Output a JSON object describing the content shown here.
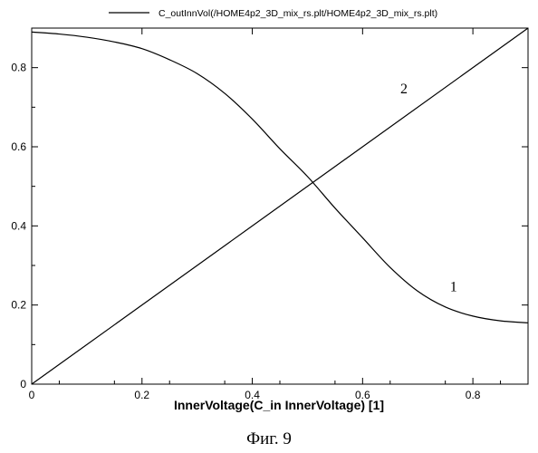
{
  "chart_data": {
    "type": "line",
    "title": "",
    "xlabel": "InnerVoltage(C_in InnerVoltage) [1]",
    "ylabel": "",
    "xlim": [
      0,
      0.9
    ],
    "ylim": [
      0,
      0.9
    ],
    "x_ticks": [
      "0",
      "0.2",
      "0.4",
      "0.6",
      "0.8"
    ],
    "y_ticks": [
      "0",
      "0.2",
      "0.4",
      "0.6",
      "0.8"
    ],
    "grid": false,
    "legend": {
      "position": "top",
      "entries": [
        "C_outInnVol(/HOME4p2_3D_mix_rs.plt/HOME4p2_3D_mix_rs.plt)"
      ]
    },
    "series": [
      {
        "label": "1",
        "x": [
          0,
          0.05,
          0.1,
          0.15,
          0.2,
          0.25,
          0.3,
          0.35,
          0.4,
          0.45,
          0.5,
          0.55,
          0.6,
          0.65,
          0.7,
          0.75,
          0.8,
          0.85,
          0.9
        ],
        "y": [
          0.89,
          0.885,
          0.877,
          0.865,
          0.848,
          0.82,
          0.785,
          0.735,
          0.67,
          0.595,
          0.525,
          0.445,
          0.37,
          0.295,
          0.235,
          0.195,
          0.172,
          0.16,
          0.155
        ]
      },
      {
        "label": "2",
        "x": [
          0,
          0.9
        ],
        "y": [
          0,
          0.9
        ]
      }
    ],
    "curve_labels": [
      {
        "text": "1",
        "x": 0.765,
        "y": 0.235
      },
      {
        "text": "2",
        "x": 0.675,
        "y": 0.735
      }
    ]
  },
  "caption": "Фиг. 9"
}
